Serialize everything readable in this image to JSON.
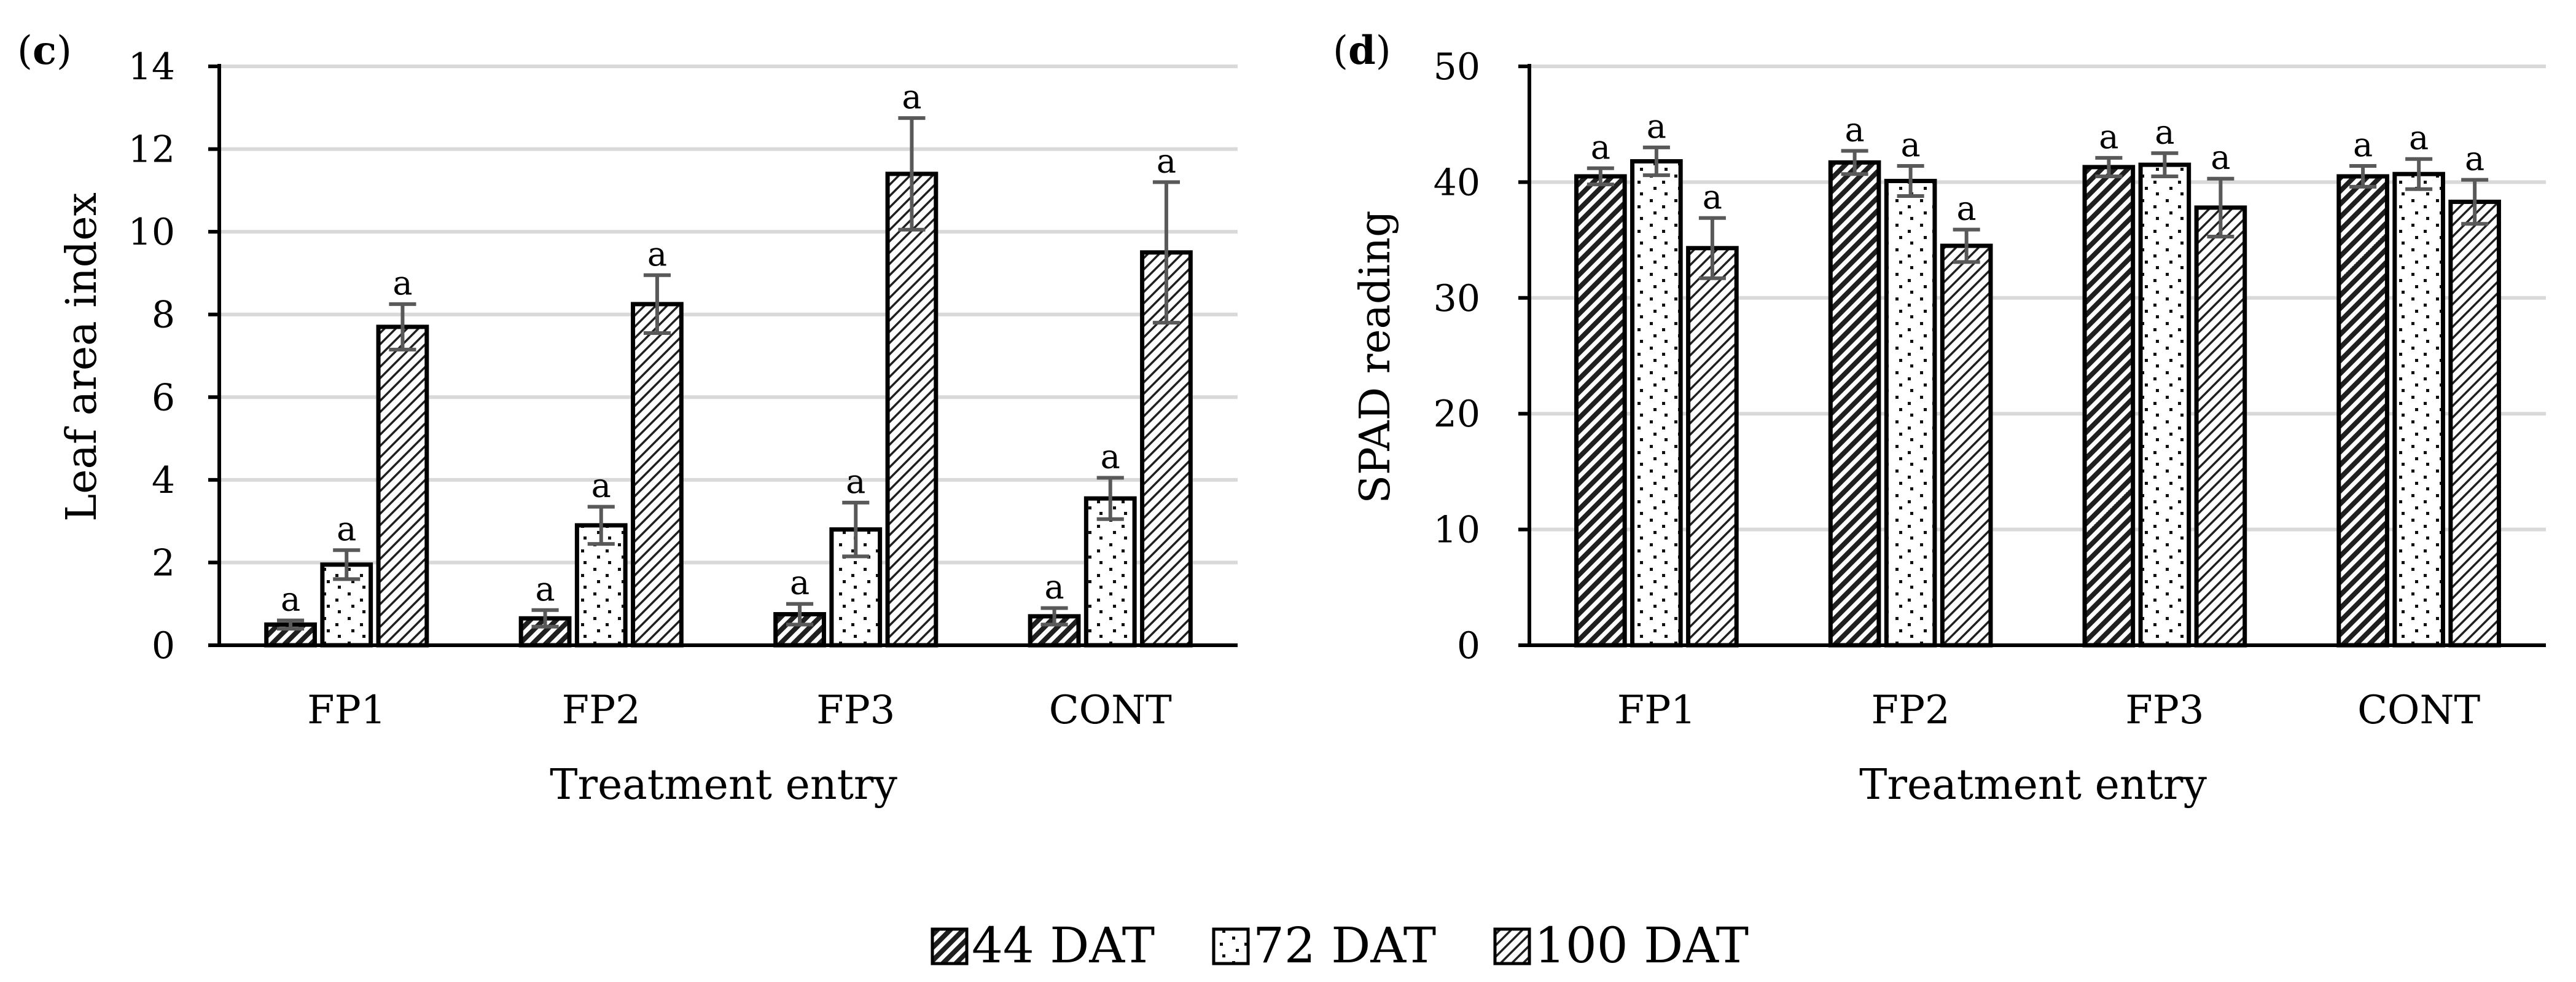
{
  "legend": [
    {
      "name": "44 DAT",
      "pattern": "hatch-dense"
    },
    {
      "name": "72 DAT",
      "pattern": "dots"
    },
    {
      "name": "100 DAT",
      "pattern": "hatch-light"
    }
  ],
  "colors": {
    "bar_stroke": "#000000",
    "error_bar": "#595959",
    "grid": "#d9d9d9",
    "hatch": "#000000"
  },
  "chart_data": [
    {
      "panel_label": "(c)",
      "panel_letter": "c",
      "type": "bar",
      "title": "",
      "xlabel": "Treatment entry",
      "ylabel": "Leaf area index",
      "ylim": [
        0,
        14
      ],
      "yticks": [
        0,
        2,
        4,
        6,
        8,
        10,
        12,
        14
      ],
      "grid": true,
      "categories": [
        "FP1",
        "FP2",
        "FP3",
        "CONT"
      ],
      "series": [
        {
          "name": "44 DAT",
          "values": [
            0.5,
            0.65,
            0.75,
            0.7
          ],
          "errors": [
            0.1,
            0.2,
            0.25,
            0.2
          ],
          "labels": [
            "a",
            "a",
            "a",
            "a"
          ]
        },
        {
          "name": "72 DAT",
          "values": [
            1.95,
            2.9,
            2.8,
            3.55
          ],
          "errors": [
            0.35,
            0.45,
            0.65,
            0.5
          ],
          "labels": [
            "a",
            "a",
            "a",
            "a"
          ]
        },
        {
          "name": "100 DAT",
          "values": [
            7.7,
            8.25,
            11.4,
            9.5
          ],
          "errors": [
            0.55,
            0.7,
            1.35,
            1.7
          ],
          "labels": [
            "a",
            "a",
            "a",
            "a"
          ]
        }
      ]
    },
    {
      "panel_label": "(d)",
      "panel_letter": "d",
      "type": "bar",
      "title": "",
      "xlabel": "Treatment entry",
      "ylabel": "SPAD reading",
      "ylim": [
        0,
        50
      ],
      "yticks": [
        0,
        10,
        20,
        30,
        40,
        50
      ],
      "grid": true,
      "categories": [
        "FP1",
        "FP2",
        "FP3",
        "CONT"
      ],
      "series": [
        {
          "name": "44 DAT",
          "values": [
            40.5,
            41.7,
            41.3,
            40.5
          ],
          "errors": [
            0.7,
            1.0,
            0.8,
            0.9
          ],
          "labels": [
            "a",
            "a",
            "a",
            "a"
          ]
        },
        {
          "name": "72 DAT",
          "values": [
            41.8,
            40.1,
            41.5,
            40.7
          ],
          "errors": [
            1.2,
            1.3,
            1.0,
            1.3
          ],
          "labels": [
            "a",
            "a",
            "a",
            "a"
          ]
        },
        {
          "name": "100 DAT",
          "values": [
            34.3,
            34.5,
            37.8,
            38.3
          ],
          "errors": [
            2.6,
            1.4,
            2.5,
            1.9
          ],
          "labels": [
            "a",
            "a",
            "a",
            "a"
          ]
        }
      ]
    }
  ]
}
